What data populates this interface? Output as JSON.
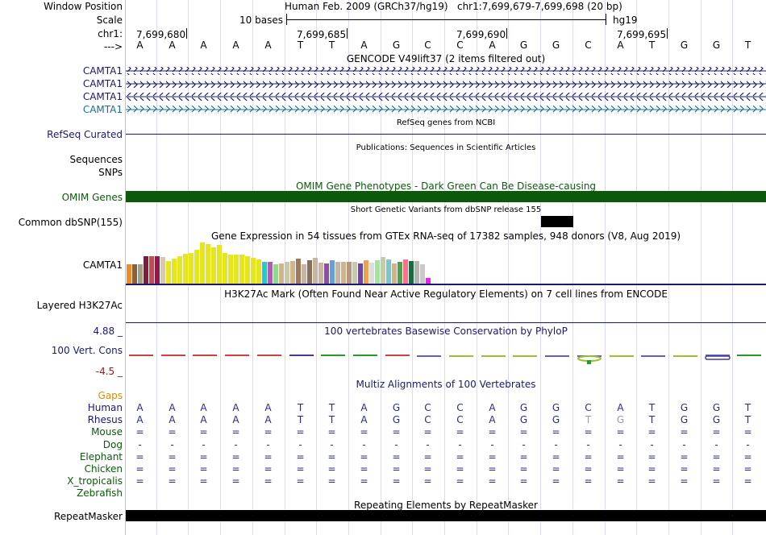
{
  "position_panel": {
    "window_position_label": "Window Position",
    "scale_label": "Scale",
    "chrom_label": "chr1:",
    "arrow_label": "--->",
    "assembly_title": "Human Feb. 2009 (GRCh37/hg19)",
    "range_text": "chr1:7,699,679-7,699,698 (20 bp)",
    "scale_text": "10 bases",
    "db_label": "hg19",
    "coord_ticks": [
      "7,699,680",
      "7,699,685",
      "7,699,690",
      "7,699,695"
    ],
    "sequence": [
      "A",
      "A",
      "A",
      "A",
      "A",
      "T",
      "T",
      "A",
      "G",
      "C",
      "C",
      "A",
      "G",
      "G",
      "C",
      "A",
      "T",
      "G",
      "G",
      "T"
    ]
  },
  "gencode": {
    "title": "GENCODE V49lift37 (2 items filtered out)",
    "transcripts": [
      "CAMTA1",
      "CAMTA1",
      "CAMTA1",
      "CAMTA1"
    ]
  },
  "refseq": {
    "label": "RefSeq Curated",
    "title": "RefSeq genes from NCBI"
  },
  "publications": {
    "label": "Sequences",
    "title": "Publications: Sequences in Scientific Articles"
  },
  "snps_label": "SNPs",
  "omim": {
    "label": "OMIM Genes",
    "title": "OMIM Gene Phenotypes - Dark Green Can Be Disease-causing",
    "color": "#0b5a0b"
  },
  "dbsnp": {
    "label": "Common dbSNP(155)",
    "title": "Short Genetic Variants from dbSNP release 155"
  },
  "gtex": {
    "label": "CAMTA1",
    "title": "Gene Expression in 54 tissues from GTEx RNA-seq of 17382 samples, 948 donors (V8, Aug 2019)"
  },
  "h3k27ac": {
    "label": "Layered H3K27Ac",
    "title": "H3K27Ac Mark (Often Found Near Active Regulatory Elements) on 7 cell lines from ENCODE"
  },
  "phylop": {
    "label": "100 Vert. Cons",
    "title": "100 vertebrates Basewise Conservation by PhyloP",
    "max": "4.88 _",
    "min": "-4.5 _"
  },
  "multiz": {
    "title": "Multiz Alignments of 100 Vertebrates",
    "gaps_label": "Gaps",
    "species": [
      {
        "name": "Human",
        "bases": [
          "A",
          "A",
          "A",
          "A",
          "A",
          "T",
          "T",
          "A",
          "G",
          "C",
          "C",
          "A",
          "G",
          "G",
          "C",
          "A",
          "T",
          "G",
          "G",
          "T"
        ]
      },
      {
        "name": "Rhesus",
        "bases": [
          "A",
          "A",
          "A",
          "A",
          "A",
          "T",
          "T",
          "A",
          "G",
          "C",
          "C",
          "A",
          "G",
          "G",
          "T",
          "G",
          "T",
          "G",
          "G",
          "T"
        ]
      },
      {
        "name": "Mouse",
        "bases": [
          "=",
          "=",
          "=",
          "=",
          "=",
          "=",
          "=",
          "=",
          "=",
          "=",
          "=",
          "=",
          "=",
          "=",
          "=",
          "=",
          "=",
          "=",
          "=",
          "="
        ]
      },
      {
        "name": "Dog",
        "bases": [
          "-",
          "-",
          "-",
          "-",
          "-",
          "-",
          "-",
          "-",
          "-",
          "-",
          "-",
          "-",
          "-",
          "-",
          "-",
          "-",
          "-",
          "-",
          "-",
          "-"
        ]
      },
      {
        "name": "Elephant",
        "bases": [
          "=",
          "=",
          "=",
          "=",
          "=",
          "=",
          "=",
          "=",
          "=",
          "=",
          "=",
          "=",
          "=",
          "=",
          "=",
          "=",
          "=",
          "=",
          "=",
          "="
        ]
      },
      {
        "name": "Chicken",
        "bases": [
          "=",
          "=",
          "=",
          "=",
          "=",
          "=",
          "=",
          "=",
          "=",
          "=",
          "=",
          "=",
          "=",
          "=",
          "=",
          "=",
          "=",
          "=",
          "=",
          "="
        ]
      },
      {
        "name": "X_tropicalis",
        "bases": [
          "=",
          "=",
          "=",
          "=",
          "=",
          "=",
          "=",
          "=",
          "=",
          "=",
          "=",
          "=",
          "=",
          "=",
          "=",
          "=",
          "=",
          "=",
          "=",
          "="
        ]
      },
      {
        "name": "Zebrafish",
        "bases": []
      }
    ]
  },
  "repeatmasker": {
    "label": "RepeatMasker",
    "title": "Repeating Elements by RepeatMasker"
  },
  "colors": {
    "navy": "#191970",
    "dark_green": "#0b5a0b",
    "orange": "#e08a00",
    "teal": "#1a6e9a",
    "conservation_red": "#8b2020",
    "alignment_blue": "#2a2a8a",
    "mismatch_gray": "#9a9aa8"
  }
}
